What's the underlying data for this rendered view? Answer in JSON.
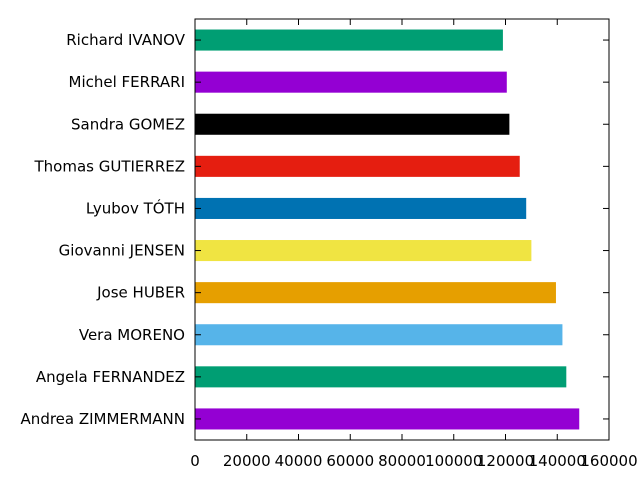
{
  "chart_data": {
    "type": "bar",
    "orientation": "horizontal",
    "title": "",
    "xlabel": "",
    "ylabel": "",
    "xlim": [
      0,
      160000
    ],
    "x_ticks": [
      {
        "value": 0,
        "label": "0"
      },
      {
        "value": 20000,
        "label": "20000"
      },
      {
        "value": 40000,
        "label": "40000"
      },
      {
        "value": 60000,
        "label": "60000"
      },
      {
        "value": 80000,
        "label": "80000"
      },
      {
        "value": 100000,
        "label": "100000"
      },
      {
        "value": 120000,
        "label": "120000"
      },
      {
        "value": 140000,
        "label": "140000"
      },
      {
        "value": 160000,
        "label": "160000"
      }
    ],
    "grid": false,
    "legend": "none",
    "categories": [
      "Richard IVANOV",
      "Michel FERRARI",
      "Sandra GOMEZ",
      "Thomas GUTIERREZ",
      "Lyubov TÓTH",
      "Giovanni JENSEN",
      "Jose HUBER",
      "Vera MORENO",
      "Angela FERNANDEZ",
      "Andrea ZIMMERMANN"
    ],
    "values": [
      119000,
      120500,
      121500,
      125500,
      128000,
      130000,
      139500,
      142000,
      143500,
      148500
    ],
    "colors": [
      "#009e73",
      "#9400d3",
      "#000000",
      "#e51e10",
      "#0072b2",
      "#f0e442",
      "#e69f00",
      "#56b4e9",
      "#009e73",
      "#9400d3"
    ]
  }
}
